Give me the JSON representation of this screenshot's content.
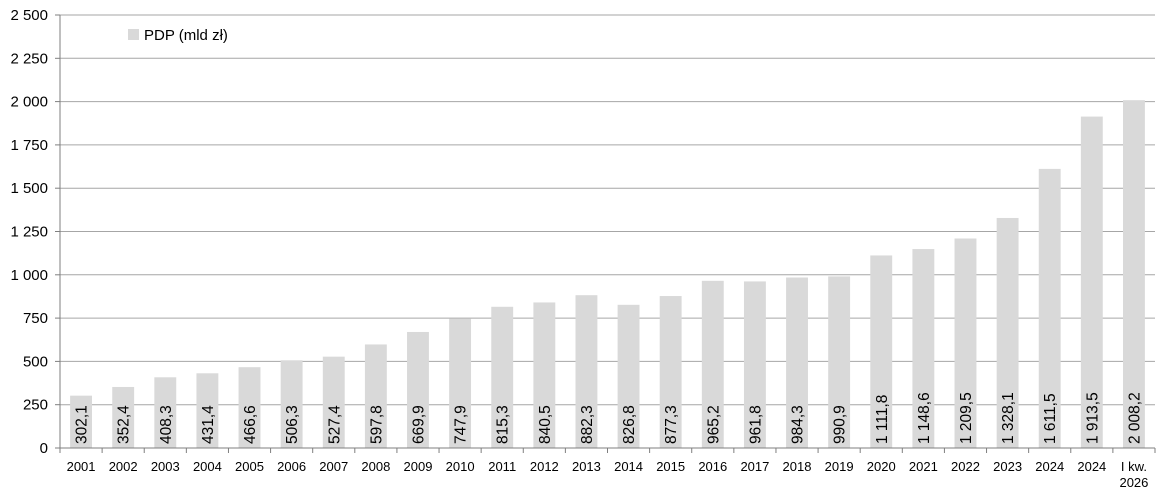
{
  "chart_data": {
    "type": "bar",
    "series": [
      {
        "name": "PDP (mld zł)",
        "color": "#d9d9d9",
        "values": [
          302.1,
          352.4,
          408.3,
          431.4,
          466.6,
          506.3,
          527.4,
          597.8,
          669.9,
          747.9,
          815.3,
          840.5,
          882.3,
          826.8,
          877.3,
          965.2,
          961.8,
          984.3,
          990.9,
          1111.8,
          1148.6,
          1209.5,
          1328.1,
          1611.5,
          1913.5,
          2008.2
        ],
        "data_labels": [
          "302,1",
          "352,4",
          "408,3",
          "431,4",
          "466,6",
          "506,3",
          "527,4",
          "597,8",
          "669,9",
          "747,9",
          "815,3",
          "840,5",
          "882,3",
          "826,8",
          "877,3",
          "965,2",
          "961,8",
          "984,3",
          "990,9",
          "1 111,8",
          "1 148,6",
          "1 209,5",
          "1 328,1",
          "1 611,5",
          "1 913,5",
          "2 008,2"
        ]
      }
    ],
    "categories": [
      "2001",
      "2002",
      "2003",
      "2004",
      "2005",
      "2006",
      "2007",
      "2008",
      "2009",
      "2010",
      "2011",
      "2012",
      "2013",
      "2014",
      "2015",
      "2016",
      "2017",
      "2018",
      "2019",
      "2020",
      "2021",
      "2022",
      "2023",
      "2024",
      "2024",
      [
        "I kw.",
        "2026"
      ]
    ],
    "ylim": [
      0,
      2500
    ],
    "yticks": [
      0,
      250,
      500,
      750,
      1000,
      1250,
      1500,
      1750,
      2000,
      2250,
      2500
    ],
    "ytick_labels": [
      "0",
      "250",
      "500",
      "750",
      "1 000",
      "1 250",
      "1 500",
      "1 750",
      "2 000",
      "2 250",
      "2 500"
    ],
    "grid": true,
    "legend_position": "top-left",
    "title": "",
    "xlabel": "",
    "ylabel": "",
    "colors": {
      "bar": "#d9d9d9",
      "grid": "#a6a6a6",
      "axis": "#7f7f7f"
    }
  }
}
